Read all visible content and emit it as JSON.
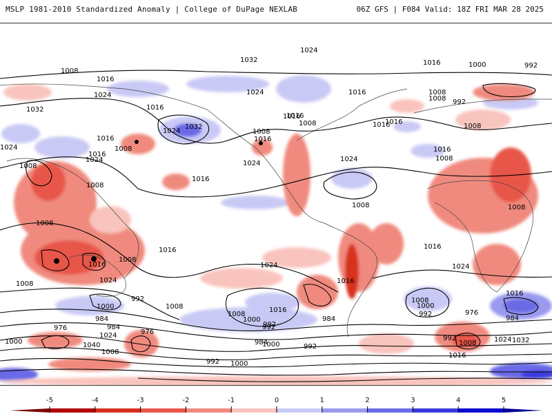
{
  "header": {
    "title_left": "MSLP 1981-2010 Standardized Anomaly | College of DuPage NEXLAB",
    "title_right": "06Z GFS | F084 Valid: 18Z FRI MAR 28 2025"
  },
  "colorbar": {
    "ticks": [
      "-5",
      "-4",
      "-3",
      "-2",
      "-1",
      "0",
      "1",
      "2",
      "3",
      "4",
      "5"
    ],
    "colors": [
      "#b30000",
      "#d7301f",
      "#e8574a",
      "#f08a7e",
      "#f9c4bd",
      "#ffffff",
      "#c9c9f5",
      "#9a9aef",
      "#6a6ae6",
      "#3a3ade",
      "#0b0bd3"
    ]
  },
  "contour_labels": [
    "1024",
    "1032",
    "1016",
    "1008",
    "1016",
    "1000",
    "992",
    "1024",
    "1008",
    "1032",
    "1016",
    "1024",
    "1032",
    "1024",
    "1016",
    "1008",
    "1016",
    "1008",
    "1016",
    "1008",
    "1016",
    "992",
    "1016",
    "1024",
    "1008",
    "1024",
    "1024",
    "1008",
    "1008",
    "1008",
    "1008",
    "1016",
    "1016",
    "1008",
    "1016",
    "1016",
    "1016",
    "1008",
    "1008",
    "1024",
    "1016",
    "1024",
    "1016",
    "1008",
    "1024",
    "1016",
    "1008",
    "1000",
    "992",
    "1008",
    "1000",
    "984",
    "976",
    "984",
    "976",
    "992",
    "1024",
    "1040",
    "1000",
    "1008",
    "1016",
    "1008",
    "1000",
    "992",
    "984",
    "992",
    "1000",
    "976",
    "984",
    "992",
    "1008",
    "1024",
    "1032",
    "1016",
    "992",
    "1000",
    "1016",
    "984",
    "992",
    "1024",
    "1008",
    "1016"
  ]
}
